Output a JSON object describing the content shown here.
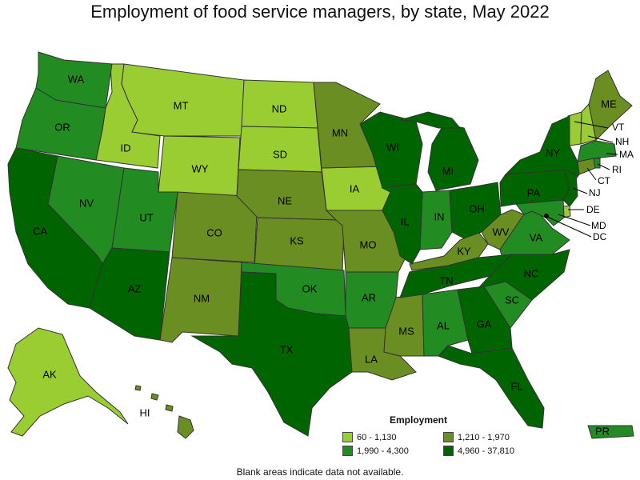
{
  "title": "Employment of food service managers, by state, May 2022",
  "footnote": "Blank areas indicate data not available.",
  "legend": {
    "title": "Employment",
    "items": [
      {
        "label": "60 - 1,130",
        "color": "#9acd32"
      },
      {
        "label": "1,210 - 1,970",
        "color": "#6b8e23"
      },
      {
        "label": "1,990 - 4,300",
        "color": "#228b22"
      },
      {
        "label": "4,960 - 37,810",
        "color": "#006400"
      }
    ]
  },
  "states": {
    "WA": "WA",
    "OR": "OR",
    "CA": "CA",
    "NV": "NV",
    "ID": "ID",
    "MT": "MT",
    "WY": "WY",
    "UT": "UT",
    "AZ": "AZ",
    "CO": "CO",
    "NM": "NM",
    "ND": "ND",
    "SD": "SD",
    "NE": "NE",
    "KS": "KS",
    "OK": "OK",
    "TX": "TX",
    "MN": "MN",
    "IA": "IA",
    "MO": "MO",
    "AR": "AR",
    "LA": "LA",
    "WI": "WI",
    "IL": "IL",
    "MI": "MI",
    "IN": "IN",
    "OH": "OH",
    "KY": "KY",
    "TN": "TN",
    "MS": "MS",
    "AL": "AL",
    "GA": "GA",
    "FL": "FL",
    "SC": "SC",
    "NC": "NC",
    "VA": "VA",
    "WV": "WV",
    "PA": "PA",
    "NY": "NY",
    "ME": "ME",
    "VT": "VT",
    "NH": "NH",
    "MA": "MA",
    "RI": "RI",
    "CT": "CT",
    "NJ": "NJ",
    "DE": "DE",
    "MD": "MD",
    "DC": "DC",
    "AK": "AK",
    "HI": "HI",
    "PR": "PR"
  }
}
